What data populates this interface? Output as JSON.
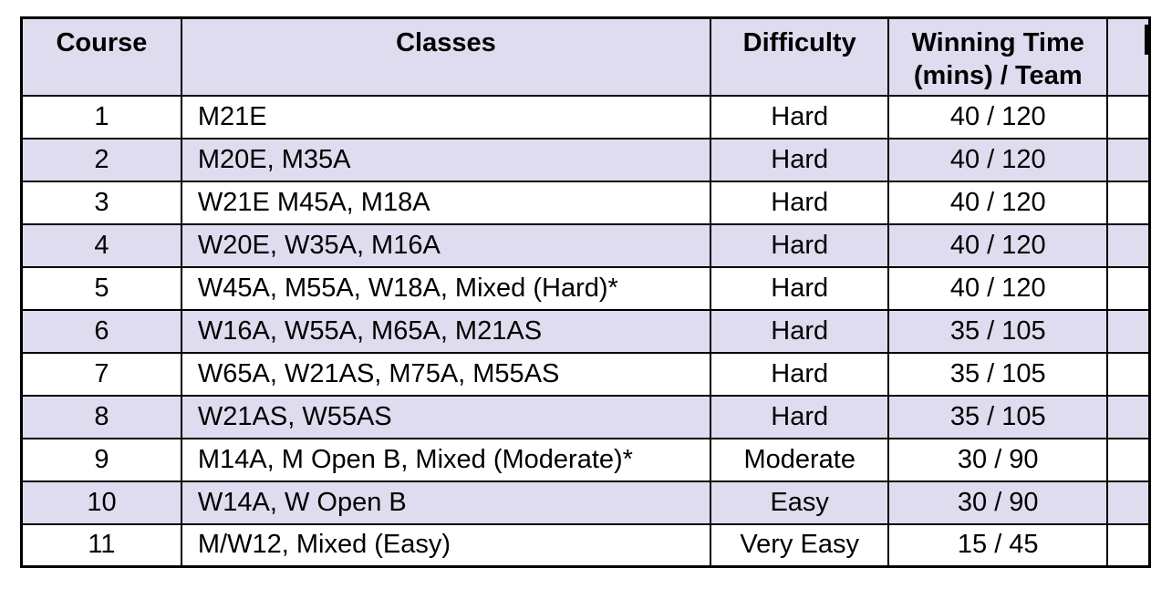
{
  "table": {
    "columns": [
      "Course",
      "Classes",
      "Difficulty",
      "Winning Time (mins) / Team"
    ],
    "rows": [
      {
        "course": "1",
        "classes": "M21E",
        "difficulty": "Hard",
        "winning_time": "40 / 120"
      },
      {
        "course": "2",
        "classes": "M20E, M35A",
        "difficulty": "Hard",
        "winning_time": "40 / 120"
      },
      {
        "course": "3",
        "classes": "W21E M45A, M18A",
        "difficulty": "Hard",
        "winning_time": "40 / 120"
      },
      {
        "course": "4",
        "classes": "W20E, W35A, M16A",
        "difficulty": "Hard",
        "winning_time": "40 / 120"
      },
      {
        "course": "5",
        "classes": "W45A, M55A, W18A, Mixed (Hard)*",
        "difficulty": "Hard",
        "winning_time": "40 / 120"
      },
      {
        "course": "6",
        "classes": "W16A, W55A, M65A, M21AS",
        "difficulty": "Hard",
        "winning_time": "35 / 105"
      },
      {
        "course": "7",
        "classes": "W65A, W21AS, M75A, M55AS",
        "difficulty": "Hard",
        "winning_time": "35 / 105"
      },
      {
        "course": "8",
        "classes": "W21AS, W55AS",
        "difficulty": "Hard",
        "winning_time": "35 / 105"
      },
      {
        "course": "9",
        "classes": "M14A, M Open B, Mixed (Moderate)*",
        "difficulty": "Moderate",
        "winning_time": "30 / 90"
      },
      {
        "course": "10",
        "classes": "W14A, W Open B",
        "difficulty": "Easy",
        "winning_time": "30 / 90"
      },
      {
        "course": "11",
        "classes": "M/W12, Mixed (Easy)",
        "difficulty": "Very Easy",
        "winning_time": "15 / 45"
      }
    ]
  },
  "colors": {
    "stripe_bg": "#dedcee",
    "row_bg": "#ffffff",
    "border": "#000000",
    "text": "#000000"
  }
}
